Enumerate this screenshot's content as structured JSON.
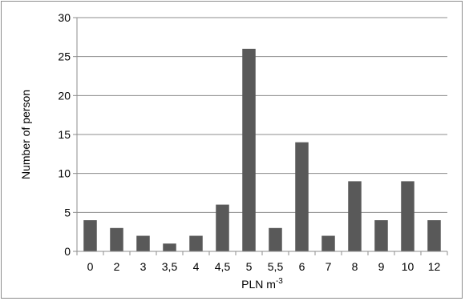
{
  "chart_data": {
    "type": "bar",
    "title": "",
    "xlabel": "PLN m",
    "xlabel_superscript": "-3",
    "ylabel": "Number of person",
    "categories": [
      "0",
      "2",
      "3",
      "3,5",
      "4",
      "4,5",
      "5",
      "5,5",
      "6",
      "7",
      "8",
      "9",
      "10",
      "12"
    ],
    "values": [
      4,
      3,
      2,
      1,
      2,
      6,
      26,
      3,
      14,
      2,
      9,
      4,
      9,
      4
    ],
    "ylim": [
      0,
      30
    ],
    "yticks": [
      "0",
      "5",
      "10",
      "15",
      "20",
      "25",
      "30"
    ],
    "grid": true,
    "legend": "none",
    "bar_color": "#595959",
    "grid_color": "#8c8c8c"
  }
}
